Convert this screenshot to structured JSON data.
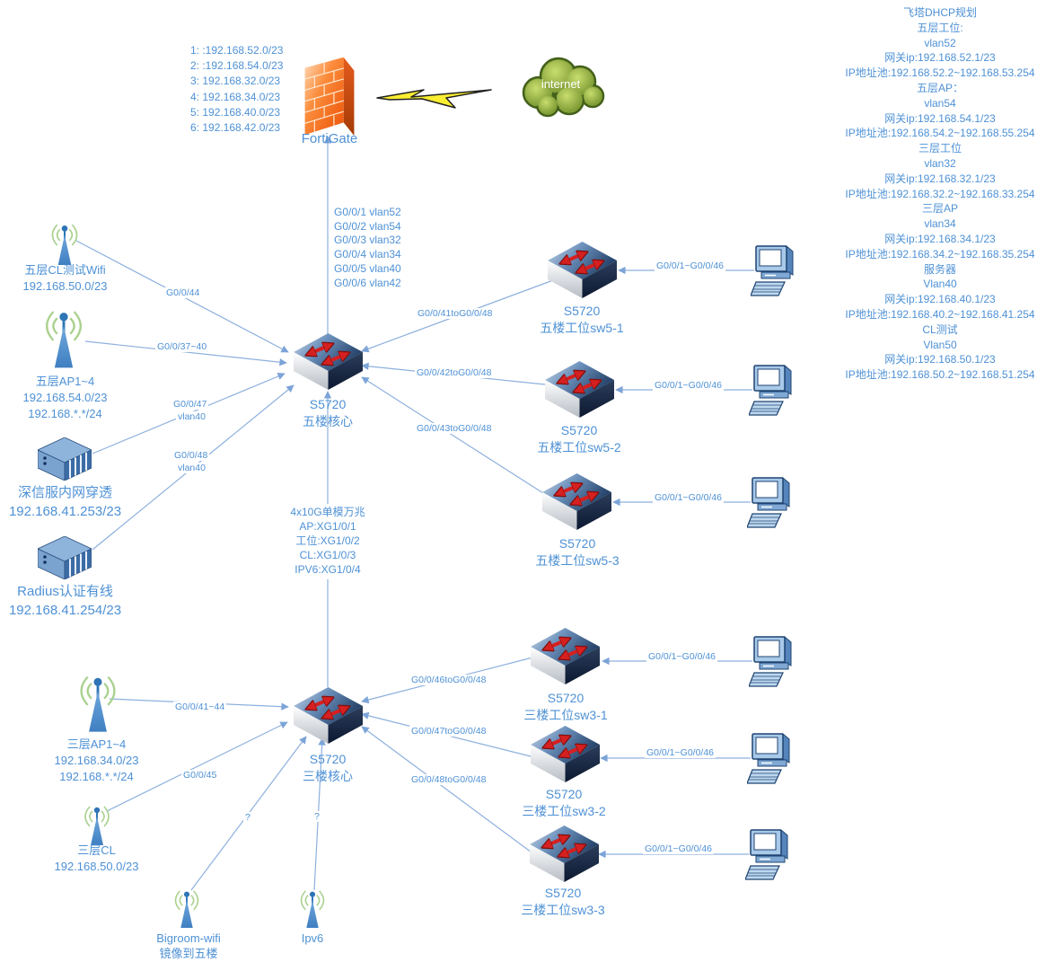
{
  "colors": {
    "label_blue": "#4e91d5",
    "line_blue": "#8db0dd",
    "switch_red_arrow": "#d62020",
    "firewall_orange": "#f2681a",
    "cloud_green": "#86a63b",
    "bolt_yellow": "#f9ee30"
  },
  "top_left_list": {
    "lines": [
      "1: :192.168.52.0/23",
      "2: :192.168.54.0/23",
      "3: 192.168.32.0/23",
      "4: 192.168.34.0/23",
      "5: 192.168.40.0/23",
      "6: 192.168.42.0/23"
    ]
  },
  "fortigate": {
    "label": "FortiGate"
  },
  "internet": {
    "label": "internet"
  },
  "uplink_ports": {
    "lines": [
      "G0/0/1 vlan52",
      "G0/0/2 vlan54",
      "G0/0/3 vlan32",
      "G0/0/4 vlan34",
      "G0/0/5 vlan40",
      "G0/0/6 vlan42"
    ]
  },
  "trunk_note": {
    "lines": [
      "4x10G单模万兆",
      "AP:XG1/0/1",
      "工位:XG1/0/2",
      "CL:XG1/0/3",
      "IPV6:XG1/0/4"
    ]
  },
  "nodes": {
    "core5": {
      "model": "S5720",
      "name": "五楼核心"
    },
    "core3": {
      "model": "S5720",
      "name": "三楼核心"
    },
    "sw51": {
      "model": "S5720",
      "name": "五楼工位sw5-1"
    },
    "sw52": {
      "model": "S5720",
      "name": "五楼工位sw5-2"
    },
    "sw53": {
      "model": "S5720",
      "name": "五楼工位sw5-3"
    },
    "sw31": {
      "model": "S5720",
      "name": "三楼工位sw3-1"
    },
    "sw32": {
      "model": "S5720",
      "name": "三楼工位sw3-2"
    },
    "sw33": {
      "model": "S5720",
      "name": "三楼工位sw3-3"
    },
    "wifi5cl": {
      "name": "五层CL测试Wifi",
      "line2": "192.168.50.0/23"
    },
    "ap5": {
      "name": "五层AP1~4",
      "line2": "192.168.54.0/23",
      "line3": "192.168.*.*/24"
    },
    "sangfor": {
      "name": "深信服内网穿透",
      "line2": "192.168.41.253/23"
    },
    "radius": {
      "name": "Radius认证有线",
      "line2": "192.168.41.254/23"
    },
    "ap3": {
      "name": "三层AP1~4",
      "line2": "192.168.34.0/23",
      "line3": "192.168.*.*/24"
    },
    "cl3": {
      "name": "三层CL",
      "line2": "192.168.50.0/23"
    },
    "bigroom": {
      "name": "Bigroom-wifi",
      "line2": "镜像到五楼"
    },
    "ipv6": {
      "name": "Ipv6"
    }
  },
  "edge_labels": {
    "g0044": "G0/0/44",
    "g003740": "G0/0/37~40",
    "g0047": "G0/0/47",
    "g0047v": "vlan40",
    "g0048": "G0/0/48",
    "g0048v": "vlan40",
    "up41": "G0/0/41toG0/0/48",
    "up42": "G0/0/42toG0/0/48",
    "up43": "G0/0/43toG0/0/48",
    "up46": "G0/0/46toG0/0/48",
    "up47": "G0/0/47toG0/0/48",
    "up48": "G0/0/48toG0/0/48",
    "access": "G0/0/1~G0/0/46",
    "g4144": "G0/0/41~44",
    "g45": "G0/0/45",
    "q1": "?",
    "q2": "?"
  },
  "dhcp_panel": {
    "lines": [
      "飞塔DHCP规划",
      "五层工位:",
      "vlan52",
      "网关ip:192.168.52.1/23",
      "IP地址池:192.168.52.2~192.168.53.254",
      "五层AP：",
      "vlan54",
      "网关ip:192.168.54.1/23",
      "IP地址池:192.168.54.2~192.168.55.254",
      "三层工位",
      "vlan32",
      "网关ip:192.168.32.1/23",
      "IP地址池:192.168.32.2~192.168.33.254",
      "三层AP",
      "vlan34",
      "网关ip:192.168.34.1/23",
      "IP地址池:192.168.34.2~192.168.35.254",
      "服务器",
      "Vlan40",
      "网关ip:192.168.40.1/23",
      "IP地址池:192.168.40.2~192.168.41.254",
      "CL测试",
      "Vlan50",
      "网关ip:192.168.50.1/23",
      "IP地址池:192.168.50.2~192.168.51.254"
    ]
  }
}
